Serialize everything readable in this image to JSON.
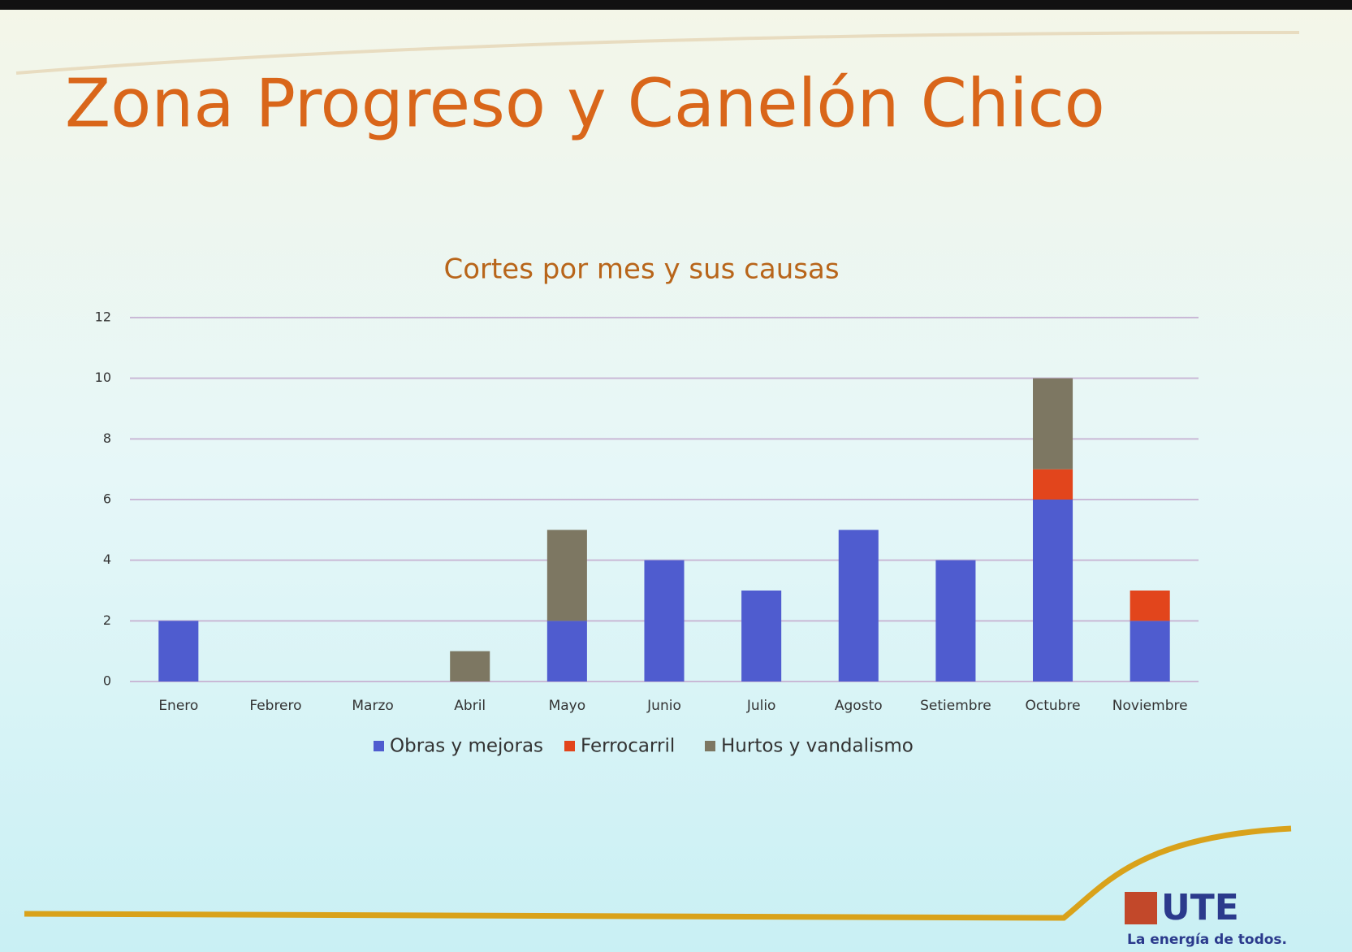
{
  "slide": {
    "title": "Zona Progreso y Canelón Chico",
    "logo": "UTE",
    "tagline": "La energía de todos."
  },
  "chart_data": {
    "type": "stacked-bar",
    "title": "Cortes por mes y sus causas",
    "categories": [
      "Enero",
      "Febrero",
      "Marzo",
      "Abril",
      "Mayo",
      "Junio",
      "Julio",
      "Agosto",
      "Setiembre",
      "Octubre",
      "Noviembre"
    ],
    "series": [
      {
        "name": "Obras y mejoras",
        "color": "#4f5ccf",
        "values": [
          2,
          0,
          0,
          0,
          2,
          4,
          3,
          5,
          4,
          6,
          2
        ]
      },
      {
        "name": "Ferrocarril",
        "color": "#e2451c",
        "values": [
          0,
          0,
          0,
          0,
          0,
          0,
          0,
          0,
          0,
          1,
          1
        ]
      },
      {
        "name": "Hurtos y vandalismo",
        "color": "#7d7762",
        "values": [
          0,
          0,
          0,
          1,
          3,
          0,
          0,
          0,
          0,
          3,
          0
        ]
      }
    ],
    "ylim": [
      0,
      12
    ],
    "yticks": [
      0,
      2,
      4,
      6,
      8,
      10,
      12
    ],
    "grid": true,
    "legend": "bottom"
  }
}
